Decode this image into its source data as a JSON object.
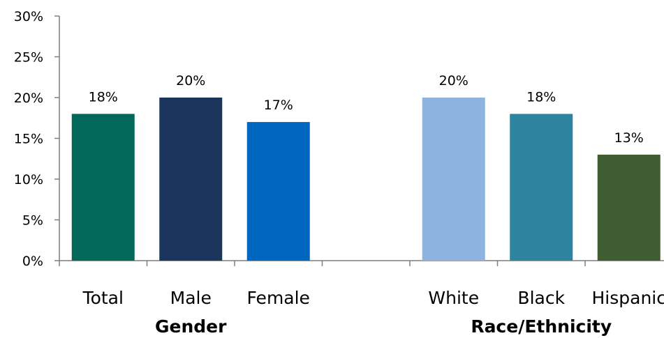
{
  "chart_data": {
    "type": "bar",
    "categories": [
      "Total",
      "Male",
      "Female",
      "",
      "White",
      "Black",
      "Hispanic"
    ],
    "values": [
      18,
      20,
      17,
      null,
      20,
      18,
      13
    ],
    "data_labels": [
      "18%",
      "20%",
      "17%",
      "",
      "20%",
      "18%",
      "13%"
    ],
    "colors": [
      "#02695A",
      "#1B365D",
      "#0067C0",
      "",
      "#8EB3E1",
      "#2E849E",
      "#3E5D30"
    ],
    "groups": [
      {
        "label": "Gender",
        "categories": [
          "Total",
          "Male",
          "Female"
        ]
      },
      {
        "label": "Race/Ethnicity",
        "categories": [
          "White",
          "Black",
          "Hispanic"
        ]
      }
    ],
    "y_ticks": [
      "0%",
      "5%",
      "10%",
      "15%",
      "20%",
      "25%",
      "30%"
    ],
    "ylim": [
      0,
      30
    ],
    "grid": false,
    "legend": "none",
    "title": "",
    "xlabel": "",
    "ylabel": ""
  }
}
